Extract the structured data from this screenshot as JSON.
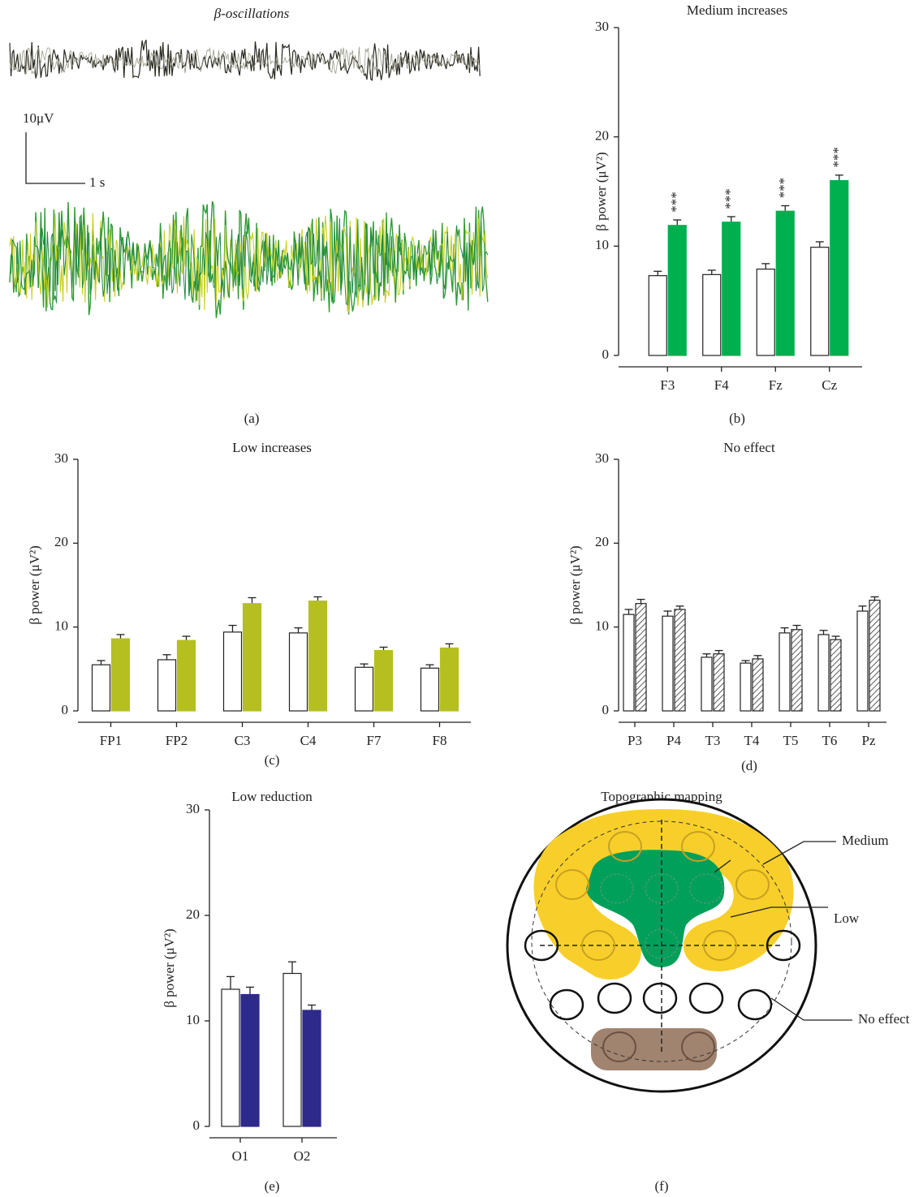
{
  "chart_data": [
    {
      "type": "bar",
      "title": "Medium increases",
      "y_label": "β power (μV²)",
      "panel_label": "(b)",
      "categories": [
        "F3",
        "F4",
        "Fz",
        "Cz"
      ],
      "series": [
        {
          "color": "#ffffff",
          "values": [
            7.3,
            7.4,
            7.9,
            9.9
          ],
          "errors": [
            0.4,
            0.4,
            0.5,
            0.5
          ]
        },
        {
          "color": "#00b04f",
          "values": [
            11.9,
            12.2,
            13.2,
            16.0
          ],
          "errors": [
            0.5,
            0.5,
            0.5,
            0.5
          ],
          "annotations": [
            "***",
            "***",
            "***",
            "***"
          ]
        }
      ],
      "ylim": [
        0,
        30
      ],
      "yticks": [
        0,
        10,
        20,
        30
      ]
    },
    {
      "type": "bar",
      "title": "Low increases",
      "y_label": "β power (μV²)",
      "panel_label": "(c)",
      "categories": [
        "FP1",
        "FP2",
        "C3",
        "C4",
        "F7",
        "F8"
      ],
      "series": [
        {
          "color": "#ffffff",
          "values": [
            5.5,
            6.1,
            9.4,
            9.3,
            5.2,
            5.1
          ],
          "errors": [
            0.5,
            0.6,
            0.8,
            0.6,
            0.4,
            0.4
          ]
        },
        {
          "color": "#b5c020",
          "values": [
            8.6,
            8.4,
            12.8,
            13.1,
            7.2,
            7.5
          ],
          "errors": [
            0.5,
            0.5,
            0.7,
            0.5,
            0.4,
            0.5
          ]
        }
      ],
      "ylim": [
        0,
        30
      ],
      "yticks": [
        0,
        10,
        20,
        30
      ]
    },
    {
      "type": "bar",
      "title": "No effect",
      "y_label": "β power (μV²)",
      "panel_label": "(d)",
      "categories": [
        "P3",
        "P4",
        "T3",
        "T4",
        "T5",
        "T6",
        "Pz"
      ],
      "series": [
        {
          "color": "#ffffff",
          "values": [
            11.5,
            11.3,
            6.4,
            5.7,
            9.3,
            9.1,
            11.9
          ],
          "errors": [
            0.6,
            0.6,
            0.4,
            0.3,
            0.6,
            0.5,
            0.6
          ]
        },
        {
          "color": "#ffffff",
          "pattern": "hatched",
          "values": [
            12.8,
            12.1,
            6.8,
            6.2,
            9.7,
            8.5,
            13.2
          ],
          "errors": [
            0.5,
            0.4,
            0.4,
            0.4,
            0.5,
            0.4,
            0.4
          ]
        }
      ],
      "ylim": [
        0,
        30
      ],
      "yticks": [
        0,
        10,
        20,
        30
      ]
    },
    {
      "type": "bar",
      "title": "Low reduction",
      "y_label": "β power (μV²)",
      "panel_label": "(e)",
      "categories": [
        "O1",
        "O2"
      ],
      "series": [
        {
          "color": "#ffffff",
          "values": [
            13.0,
            14.5
          ],
          "errors": [
            1.2,
            1.1
          ]
        },
        {
          "color": "#2e2a8c",
          "values": [
            12.5,
            11.0
          ],
          "errors": [
            0.7,
            0.5
          ]
        }
      ],
      "ylim": [
        0,
        30
      ],
      "yticks": [
        0,
        10,
        20,
        30
      ]
    }
  ],
  "panel_a": {
    "title": "β-oscillations",
    "scale_y": "10μV",
    "scale_x": "1 s",
    "panel_label": "(a)"
  },
  "panel_f": {
    "title": "Topographic mapping",
    "labels": [
      "Medium",
      "Low",
      "No effect"
    ],
    "panel_label": "(f)"
  }
}
